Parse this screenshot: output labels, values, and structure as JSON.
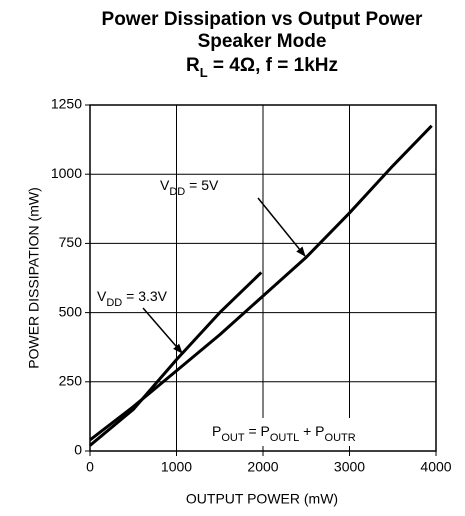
{
  "chart_data": {
    "type": "line",
    "title": "Power Dissipation vs Output Power",
    "subtitle": "Speaker Mode",
    "conditions": [
      {
        "text": "R"
      },
      {
        "text": "L",
        "sub": true
      },
      {
        "text": " = 4Ω, f = 1kHz"
      }
    ],
    "x_label": "OUTPUT POWER (mW)",
    "y_label": "POWER DISSIPATION (mW)",
    "xlim": [
      0,
      4000
    ],
    "xticks": [
      0,
      1000,
      2000,
      3000,
      4000
    ],
    "ylim": [
      0,
      1250
    ],
    "yticks": [
      0,
      250,
      500,
      750,
      1000,
      1250
    ],
    "grid": true,
    "series": [
      {
        "name": [
          {
            "text": "V"
          },
          {
            "text": "DD",
            "sub": true
          },
          {
            "text": " = 5V"
          }
        ],
        "color": "#000000",
        "x": [
          0,
          500,
          1000,
          1500,
          2000,
          2500,
          3000,
          3500,
          3950
        ],
        "values": [
          40,
          160,
          290,
          420,
          560,
          700,
          860,
          1030,
          1175
        ]
      },
      {
        "name": [
          {
            "text": "V"
          },
          {
            "text": "DD",
            "sub": true
          },
          {
            "text": " = 3.3V"
          }
        ],
        "color": "#000000",
        "x": [
          0,
          500,
          1000,
          1500,
          1980
        ],
        "values": [
          20,
          150,
          330,
          500,
          645
        ]
      }
    ],
    "annotation": [
      {
        "text": "P"
      },
      {
        "text": "OUT",
        "sub": true
      },
      {
        "text": " = P"
      },
      {
        "text": "OUTL",
        "sub": true
      },
      {
        "text": "  +  P"
      },
      {
        "text": "OUTR",
        "sub": true
      }
    ]
  }
}
